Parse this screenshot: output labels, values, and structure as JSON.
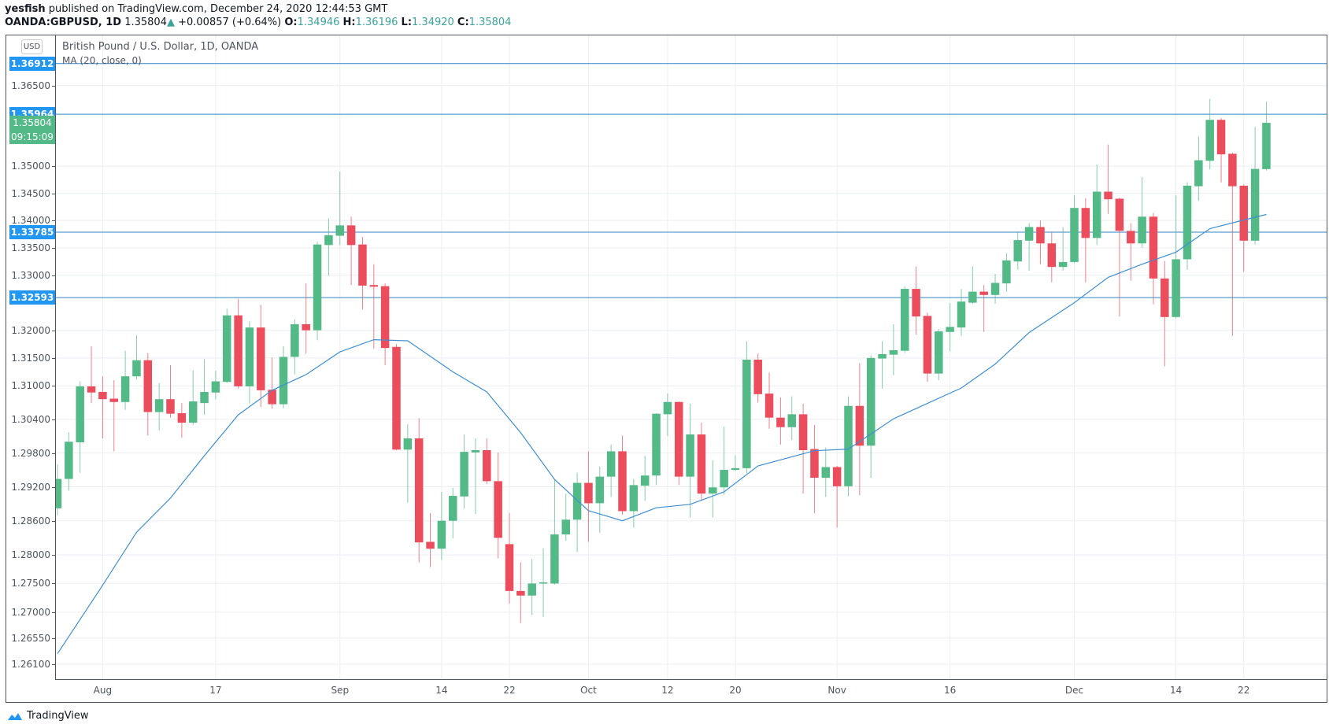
{
  "header": {
    "author": "yesfish",
    "published": " published on TradingView.com, December 24, 2020 12:44:53 GMT",
    "symbol": "OANDA:GBPUSD, 1D",
    "last": "1.35804",
    "change_arrow": "▲",
    "change": "+0.00857 (+0.64%)",
    "o_label": "O:",
    "o": "1.34946",
    "h_label": "H:",
    "h": "1.36196",
    "l_label": "L:",
    "l": "1.34920",
    "c_label": "C:",
    "c": "1.35804"
  },
  "currency_badge": "USD",
  "footer": {
    "brand": "TradingView"
  },
  "colors": {
    "up": "#53b987",
    "down": "#eb4d5c",
    "ma": "#3f8fd2",
    "hline": "#2f86c8",
    "label_blue": "#2196f3",
    "label_green": "#53b987",
    "grid": "#eceef2"
  },
  "chart_data": {
    "type": "candlestick",
    "title": "British Pound / U.S. Dollar, 1D, OANDA",
    "indicator_label": "MA (20, close, 0)",
    "y_scale": "log",
    "ylim": [
      1.2584,
      1.3744
    ],
    "grid": true,
    "y_ticks": [
      "1.36500",
      "1.35000",
      "1.34500",
      "1.34000",
      "1.33500",
      "1.33000",
      "1.32000",
      "1.31500",
      "1.31000",
      "1.30400",
      "1.29800",
      "1.29200",
      "1.28600",
      "1.28000",
      "1.27500",
      "1.27000",
      "1.26550",
      "1.26100"
    ],
    "x_ticks": [
      {
        "date": "2020-08-03",
        "label": "Aug"
      },
      {
        "date": "2020-08-17",
        "label": "17"
      },
      {
        "date": "2020-09-01",
        "label": "Sep"
      },
      {
        "date": "2020-09-14",
        "label": "14"
      },
      {
        "date": "2020-09-22",
        "label": "22"
      },
      {
        "date": "2020-10-01",
        "label": "Oct"
      },
      {
        "date": "2020-10-12",
        "label": "12"
      },
      {
        "date": "2020-10-20",
        "label": "20"
      },
      {
        "date": "2020-11-02",
        "label": "Nov"
      },
      {
        "date": "2020-11-16",
        "label": "16"
      },
      {
        "date": "2020-12-01",
        "label": "Dec"
      },
      {
        "date": "2020-12-14",
        "label": "14"
      },
      {
        "date": "2020-12-22",
        "label": "22"
      }
    ],
    "horizontal_lines": [
      1.36912,
      1.35964,
      1.33785,
      1.32593
    ],
    "price_labels": [
      {
        "value": 1.36912,
        "text": "1.36912",
        "kind": "line"
      },
      {
        "value": 1.35964,
        "text": "1.35964",
        "kind": "line"
      },
      {
        "value": 1.35804,
        "text": "1.35804",
        "kind": "last"
      },
      {
        "value": 1.33785,
        "text": "1.33785",
        "kind": "line"
      },
      {
        "value": 1.32593,
        "text": "1.32593",
        "kind": "line"
      }
    ],
    "countdown": "09:15:09",
    "candles_columns": [
      "date",
      "open",
      "high",
      "low",
      "close"
    ],
    "candles": [
      [
        "2020-07-28",
        1.2882,
        1.296,
        1.287,
        1.2934
      ],
      [
        "2020-07-29",
        1.2934,
        1.3017,
        1.2913,
        1.3
      ],
      [
        "2020-07-30",
        1.2999,
        1.3108,
        1.2945,
        1.3099
      ],
      [
        "2020-07-31",
        1.3099,
        1.3171,
        1.3069,
        1.3088
      ],
      [
        "2020-08-03",
        1.3089,
        1.3117,
        1.3006,
        1.3076
      ],
      [
        "2020-08-04",
        1.3077,
        1.311,
        1.2983,
        1.3071
      ],
      [
        "2020-08-05",
        1.3071,
        1.3163,
        1.3057,
        1.3117
      ],
      [
        "2020-08-06",
        1.3117,
        1.3191,
        1.3111,
        1.3146
      ],
      [
        "2020-08-07",
        1.3146,
        1.3159,
        1.3011,
        1.3053
      ],
      [
        "2020-08-10",
        1.3053,
        1.3105,
        1.302,
        1.3076
      ],
      [
        "2020-08-11",
        1.3076,
        1.3137,
        1.3043,
        1.305
      ],
      [
        "2020-08-12",
        1.3051,
        1.3069,
        1.3007,
        1.3034
      ],
      [
        "2020-08-13",
        1.3034,
        1.3128,
        1.303,
        1.3072
      ],
      [
        "2020-08-14",
        1.3069,
        1.3148,
        1.3048,
        1.3089
      ],
      [
        "2020-08-17",
        1.3088,
        1.3127,
        1.3076,
        1.3108
      ],
      [
        "2020-08-18",
        1.3107,
        1.3239,
        1.3105,
        1.3227
      ],
      [
        "2020-08-19",
        1.3227,
        1.3257,
        1.3095,
        1.3099
      ],
      [
        "2020-08-20",
        1.3099,
        1.3216,
        1.3068,
        1.3205
      ],
      [
        "2020-08-21",
        1.3205,
        1.3246,
        1.3062,
        1.3092
      ],
      [
        "2020-08-24",
        1.3093,
        1.3151,
        1.3059,
        1.3067
      ],
      [
        "2020-08-25",
        1.3067,
        1.3171,
        1.306,
        1.3152
      ],
      [
        "2020-08-26",
        1.3152,
        1.322,
        1.3121,
        1.3211
      ],
      [
        "2020-08-27",
        1.3211,
        1.3285,
        1.3158,
        1.32
      ],
      [
        "2020-08-28",
        1.32,
        1.3361,
        1.3182,
        1.3356
      ],
      [
        "2020-08-31",
        1.3355,
        1.3404,
        1.3299,
        1.3373
      ],
      [
        "2020-09-01",
        1.3372,
        1.349,
        1.3355,
        1.3391
      ],
      [
        "2020-09-02",
        1.3391,
        1.3407,
        1.3282,
        1.3355
      ],
      [
        "2020-09-03",
        1.3356,
        1.337,
        1.3238,
        1.3281
      ],
      [
        "2020-09-04",
        1.3282,
        1.332,
        1.3167,
        1.3279
      ],
      [
        "2020-09-07",
        1.328,
        1.3285,
        1.3137,
        1.3168
      ],
      [
        "2020-09-08",
        1.317,
        1.3175,
        1.2985,
        1.2986
      ],
      [
        "2020-09-09",
        1.2986,
        1.3031,
        1.2892,
        1.3006
      ],
      [
        "2020-09-10",
        1.3006,
        1.3042,
        1.2787,
        1.2822
      ],
      [
        "2020-09-11",
        1.2823,
        1.2874,
        1.2779,
        1.2811
      ],
      [
        "2020-09-14",
        1.2811,
        1.2911,
        1.2791,
        1.286
      ],
      [
        "2020-09-15",
        1.286,
        1.2918,
        1.2829,
        1.2904
      ],
      [
        "2020-09-16",
        1.2903,
        1.3013,
        1.2882,
        1.2982
      ],
      [
        "2020-09-17",
        1.2981,
        1.3006,
        1.2872,
        1.2985
      ],
      [
        "2020-09-18",
        1.2985,
        1.3006,
        1.2925,
        1.293
      ],
      [
        "2020-09-21",
        1.293,
        1.2981,
        1.2794,
        1.283
      ],
      [
        "2020-09-22",
        1.2819,
        1.2874,
        1.2715,
        1.2737
      ],
      [
        "2020-09-23",
        1.2737,
        1.2787,
        1.2681,
        1.2729
      ],
      [
        "2020-09-24",
        1.2729,
        1.2793,
        1.2695,
        1.275
      ],
      [
        "2020-09-25",
        1.275,
        1.2812,
        1.2692,
        1.2752
      ],
      [
        "2020-09-28",
        1.275,
        1.2934,
        1.2748,
        1.2836
      ],
      [
        "2020-09-29",
        1.2836,
        1.2908,
        1.2825,
        1.2862
      ],
      [
        "2020-09-30",
        1.2862,
        1.2945,
        1.2805,
        1.2927
      ],
      [
        "2020-10-01",
        1.2927,
        1.2983,
        1.2823,
        1.2891
      ],
      [
        "2020-10-02",
        1.2891,
        1.2956,
        1.2839,
        1.2938
      ],
      [
        "2020-10-05",
        1.2938,
        1.2995,
        1.2902,
        1.2983
      ],
      [
        "2020-10-06",
        1.2983,
        1.3011,
        1.2871,
        1.2877
      ],
      [
        "2020-10-07",
        1.2877,
        1.2934,
        1.2848,
        1.2923
      ],
      [
        "2020-10-08",
        1.2922,
        1.2975,
        1.2895,
        1.294
      ],
      [
        "2020-10-09",
        1.294,
        1.3051,
        1.2923,
        1.305
      ],
      [
        "2020-10-12",
        1.3049,
        1.3086,
        1.301,
        1.3071
      ],
      [
        "2020-10-13",
        1.3071,
        1.3072,
        1.2923,
        1.2938
      ],
      [
        "2020-10-14",
        1.2938,
        1.3068,
        1.2866,
        1.3013
      ],
      [
        "2020-10-15",
        1.3013,
        1.3034,
        1.2895,
        1.2908
      ],
      [
        "2020-10-16",
        1.2908,
        1.2967,
        1.2866,
        1.2919
      ],
      [
        "2020-10-19",
        1.2919,
        1.3027,
        1.2906,
        1.295
      ],
      [
        "2020-10-20",
        1.295,
        1.2976,
        1.2948,
        1.2953
      ],
      [
        "2020-10-21",
        1.2953,
        1.318,
        1.2944,
        1.3147
      ],
      [
        "2020-10-22",
        1.3147,
        1.3158,
        1.307,
        1.3085
      ],
      [
        "2020-10-23",
        1.3086,
        1.3124,
        1.3023,
        1.3043
      ],
      [
        "2020-10-26",
        1.3043,
        1.3079,
        1.2995,
        1.3026
      ],
      [
        "2020-10-27",
        1.3026,
        1.3081,
        1.3003,
        1.3049
      ],
      [
        "2020-10-28",
        1.3049,
        1.3068,
        1.2908,
        1.2985
      ],
      [
        "2020-10-29",
        1.2987,
        1.303,
        1.2873,
        1.2936
      ],
      [
        "2020-10-30",
        1.2936,
        1.299,
        1.2902,
        1.2955
      ],
      [
        "2020-11-02",
        1.2955,
        1.2957,
        1.2848,
        1.2921
      ],
      [
        "2020-11-03",
        1.2921,
        1.3081,
        1.2903,
        1.3064
      ],
      [
        "2020-11-04",
        1.3064,
        1.3141,
        1.2905,
        1.2993
      ],
      [
        "2020-11-05",
        1.2993,
        1.3155,
        1.2936,
        1.315
      ],
      [
        "2020-11-06",
        1.3149,
        1.318,
        1.3095,
        1.3157
      ],
      [
        "2020-11-09",
        1.3156,
        1.3211,
        1.3119,
        1.3164
      ],
      [
        "2020-11-10",
        1.3163,
        1.328,
        1.3159,
        1.3275
      ],
      [
        "2020-11-11",
        1.3275,
        1.3316,
        1.3192,
        1.3225
      ],
      [
        "2020-11-12",
        1.3226,
        1.3232,
        1.3107,
        1.3122
      ],
      [
        "2020-11-13",
        1.3122,
        1.3202,
        1.311,
        1.3198
      ],
      [
        "2020-11-16",
        1.3197,
        1.3249,
        1.3162,
        1.3206
      ],
      [
        "2020-11-17",
        1.3205,
        1.3275,
        1.319,
        1.3252
      ],
      [
        "2020-11-18",
        1.325,
        1.3316,
        1.3248,
        1.327
      ],
      [
        "2020-11-19",
        1.327,
        1.3282,
        1.3197,
        1.3264
      ],
      [
        "2020-11-20",
        1.3264,
        1.3302,
        1.3248,
        1.3286
      ],
      [
        "2020-11-23",
        1.3285,
        1.334,
        1.327,
        1.3327
      ],
      [
        "2020-11-24",
        1.3325,
        1.338,
        1.331,
        1.3364
      ],
      [
        "2020-11-25",
        1.3363,
        1.3395,
        1.3308,
        1.3388
      ],
      [
        "2020-11-26",
        1.3388,
        1.34,
        1.332,
        1.3358
      ],
      [
        "2020-11-27",
        1.3358,
        1.3379,
        1.3287,
        1.3315
      ],
      [
        "2020-11-30",
        1.3315,
        1.3388,
        1.3308,
        1.3324
      ],
      [
        "2020-12-01",
        1.3324,
        1.3446,
        1.3322,
        1.3423
      ],
      [
        "2020-12-02",
        1.3423,
        1.3441,
        1.3287,
        1.3368
      ],
      [
        "2020-12-03",
        1.3368,
        1.3503,
        1.3355,
        1.3453
      ],
      [
        "2020-12-04",
        1.3453,
        1.354,
        1.3412,
        1.3439
      ],
      [
        "2020-12-07",
        1.344,
        1.3442,
        1.3225,
        1.3381
      ],
      [
        "2020-12-08",
        1.3381,
        1.3395,
        1.329,
        1.3358
      ],
      [
        "2020-12-09",
        1.3358,
        1.348,
        1.335,
        1.3407
      ],
      [
        "2020-12-10",
        1.3407,
        1.3414,
        1.3247,
        1.3294
      ],
      [
        "2020-12-11",
        1.3294,
        1.3326,
        1.3135,
        1.3224
      ],
      [
        "2020-12-14",
        1.3224,
        1.3446,
        1.3222,
        1.3329
      ],
      [
        "2020-12-15",
        1.3329,
        1.347,
        1.331,
        1.3464
      ],
      [
        "2020-12-16",
        1.3463,
        1.3555,
        1.3436,
        1.3511
      ],
      [
        "2020-12-17",
        1.351,
        1.3625,
        1.3494,
        1.3586
      ],
      [
        "2020-12-18",
        1.3586,
        1.3589,
        1.347,
        1.3522
      ],
      [
        "2020-12-21",
        1.3523,
        1.3525,
        1.319,
        1.3463
      ],
      [
        "2020-12-22",
        1.3464,
        1.3466,
        1.3306,
        1.3363
      ],
      [
        "2020-12-23",
        1.3363,
        1.3573,
        1.3356,
        1.3495
      ],
      [
        "2020-12-24",
        1.34946,
        1.36196,
        1.3492,
        1.35804
      ]
    ],
    "ma_series": {
      "name": "MA (20, close, 0)",
      "points": [
        [
          "2020-07-28",
          1.2628
        ],
        [
          "2020-08-03",
          1.2747
        ],
        [
          "2020-08-06",
          1.284
        ],
        [
          "2020-08-11",
          1.29
        ],
        [
          "2020-08-14",
          1.2975
        ],
        [
          "2020-08-19",
          1.3048
        ],
        [
          "2020-08-24",
          1.3092
        ],
        [
          "2020-08-27",
          1.312
        ],
        [
          "2020-09-01",
          1.3161
        ],
        [
          "2020-09-04",
          1.3183
        ],
        [
          "2020-09-09",
          1.3181
        ],
        [
          "2020-09-15",
          1.3125
        ],
        [
          "2020-09-18",
          1.3089
        ],
        [
          "2020-09-23",
          1.3016
        ],
        [
          "2020-09-28",
          1.2933
        ],
        [
          "2020-10-01",
          1.2878
        ],
        [
          "2020-10-06",
          1.286
        ],
        [
          "2020-10-09",
          1.2883
        ],
        [
          "2020-10-14",
          1.2889
        ],
        [
          "2020-10-19",
          1.2911
        ],
        [
          "2020-10-22",
          1.2957
        ],
        [
          "2020-10-29",
          1.2984
        ],
        [
          "2020-11-03",
          1.2987
        ],
        [
          "2020-11-09",
          1.3041
        ],
        [
          "2020-11-17",
          1.3096
        ],
        [
          "2020-11-20",
          1.3139
        ],
        [
          "2020-11-25",
          1.3196
        ],
        [
          "2020-12-01",
          1.325
        ],
        [
          "2020-12-04",
          1.3296
        ],
        [
          "2020-12-09",
          1.332
        ],
        [
          "2020-12-14",
          1.3342
        ],
        [
          "2020-12-17",
          1.3385
        ],
        [
          "2020-12-22",
          1.3401
        ],
        [
          "2020-12-24",
          1.3411
        ]
      ]
    }
  }
}
